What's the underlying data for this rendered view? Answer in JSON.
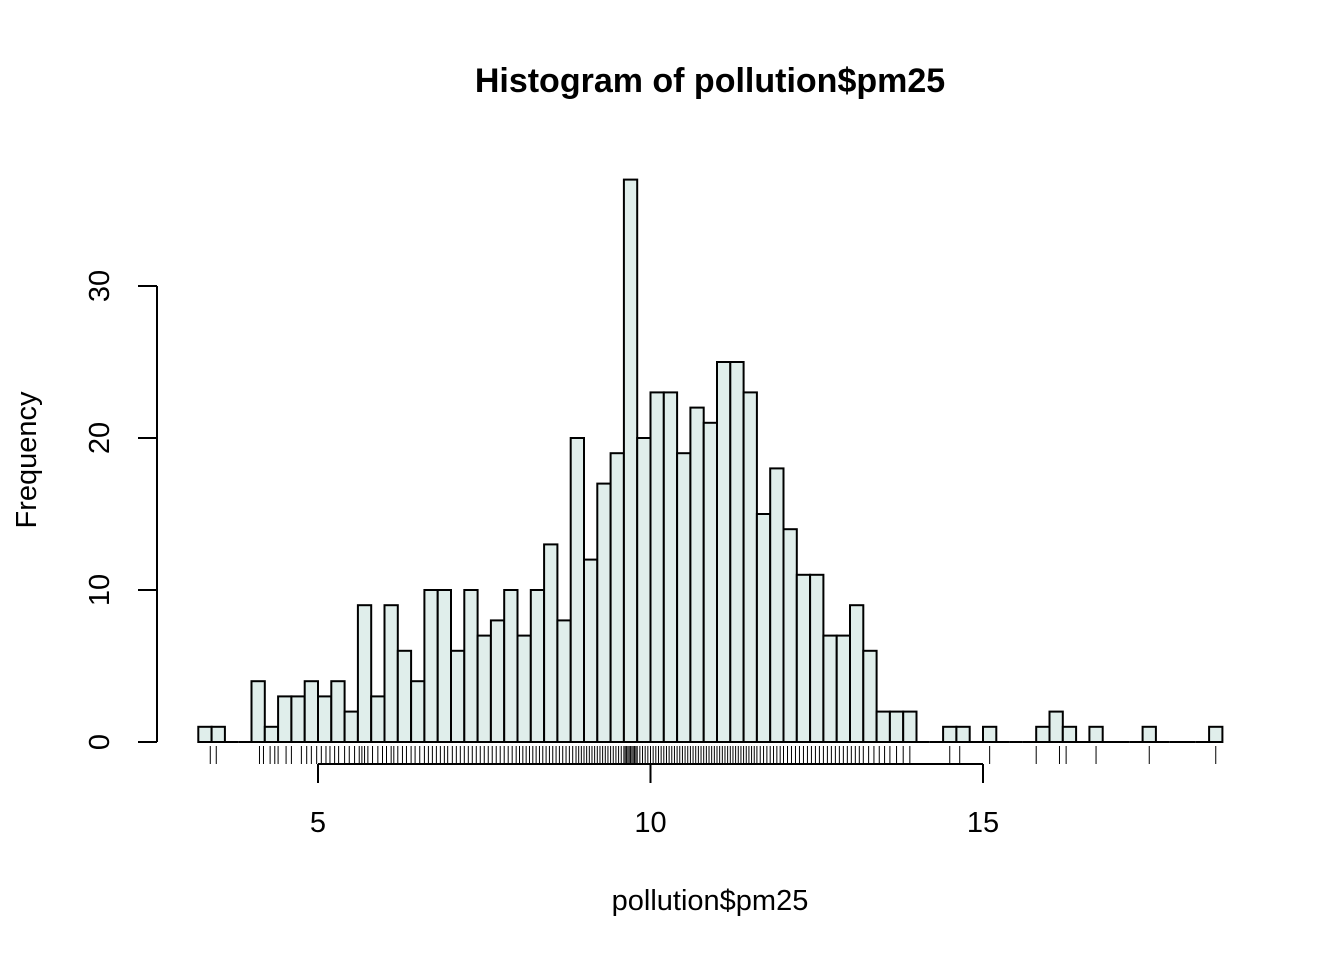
{
  "chart_data": {
    "type": "bar",
    "title": "Histogram of pollution$pm25",
    "xlabel": "pollution$pm25",
    "ylabel": "Frequency",
    "bar_color": "#e0eeeb",
    "xlim": [
      3.2,
      18.6
    ],
    "ylim": [
      0,
      37
    ],
    "bin_width": 0.2,
    "bins_start": 3.2,
    "counts": [
      1,
      1,
      0,
      0,
      4,
      1,
      3,
      3,
      4,
      3,
      4,
      2,
      9,
      3,
      9,
      6,
      4,
      10,
      10,
      6,
      10,
      7,
      8,
      10,
      7,
      10,
      13,
      8,
      20,
      12,
      17,
      19,
      37,
      20,
      23,
      23,
      19,
      22,
      21,
      25,
      25,
      23,
      15,
      18,
      14,
      11,
      11,
      7,
      7,
      9,
      6,
      2,
      2,
      2,
      0,
      0,
      1,
      1,
      0,
      1,
      0,
      0,
      0,
      1,
      2,
      1,
      0,
      1,
      0,
      0,
      0,
      1,
      0,
      0,
      0,
      0,
      1
    ],
    "x_ticks": [
      5,
      10,
      15
    ],
    "x_tick_labels": [
      "5",
      "10",
      "15"
    ],
    "y_ticks": [
      0,
      10,
      20,
      30
    ],
    "y_tick_labels": [
      "0",
      "10",
      "20",
      "30"
    ],
    "rug_x": [
      3.38,
      3.47,
      4.12,
      4.18,
      4.28,
      4.35,
      4.4,
      4.52,
      4.6,
      4.75,
      4.83,
      4.9,
      4.98,
      5.05,
      5.12,
      5.18,
      5.25,
      5.31,
      5.4,
      5.47,
      5.55,
      5.62,
      5.66,
      5.7,
      5.75,
      5.82,
      5.9,
      5.97,
      6.03,
      6.1,
      6.14,
      6.2,
      6.27,
      6.33,
      6.4,
      6.46,
      6.53,
      6.6,
      6.66,
      6.72,
      6.78,
      6.84,
      6.9,
      6.95,
      7.02,
      7.08,
      7.14,
      7.2,
      7.26,
      7.32,
      7.38,
      7.44,
      7.5,
      7.56,
      7.62,
      7.68,
      7.74,
      7.8,
      7.86,
      7.92,
      7.98,
      8.03,
      8.08,
      8.13,
      8.18,
      8.23,
      8.28,
      8.33,
      8.38,
      8.43,
      8.48,
      8.53,
      8.58,
      8.63,
      8.68,
      8.73,
      8.78,
      8.83,
      8.88,
      8.92,
      8.96,
      9.0,
      9.04,
      9.08,
      9.12,
      9.16,
      9.2,
      9.24,
      9.28,
      9.32,
      9.36,
      9.4,
      9.44,
      9.48,
      9.52,
      9.56,
      9.6,
      9.62,
      9.64,
      9.66,
      9.68,
      9.7,
      9.72,
      9.74,
      9.76,
      9.78,
      9.8,
      9.84,
      9.88,
      9.92,
      9.96,
      10.0,
      10.04,
      10.08,
      10.12,
      10.16,
      10.2,
      10.24,
      10.28,
      10.32,
      10.36,
      10.4,
      10.44,
      10.48,
      10.52,
      10.56,
      10.6,
      10.64,
      10.68,
      10.72,
      10.76,
      10.8,
      10.84,
      10.88,
      10.92,
      10.96,
      11.0,
      11.04,
      11.08,
      11.12,
      11.16,
      11.2,
      11.24,
      11.28,
      11.32,
      11.36,
      11.4,
      11.44,
      11.48,
      11.52,
      11.56,
      11.6,
      11.65,
      11.7,
      11.75,
      11.8,
      11.85,
      11.9,
      11.95,
      12.0,
      12.06,
      12.12,
      12.18,
      12.24,
      12.3,
      12.36,
      12.42,
      12.48,
      12.54,
      12.6,
      12.66,
      12.72,
      12.78,
      12.84,
      12.9,
      12.96,
      13.02,
      13.08,
      13.14,
      13.2,
      13.28,
      13.36,
      13.44,
      13.52,
      13.6,
      13.7,
      13.8,
      13.9,
      14.5,
      14.65,
      15.1,
      15.8,
      16.15,
      16.25,
      16.7,
      17.5,
      18.5
    ]
  }
}
